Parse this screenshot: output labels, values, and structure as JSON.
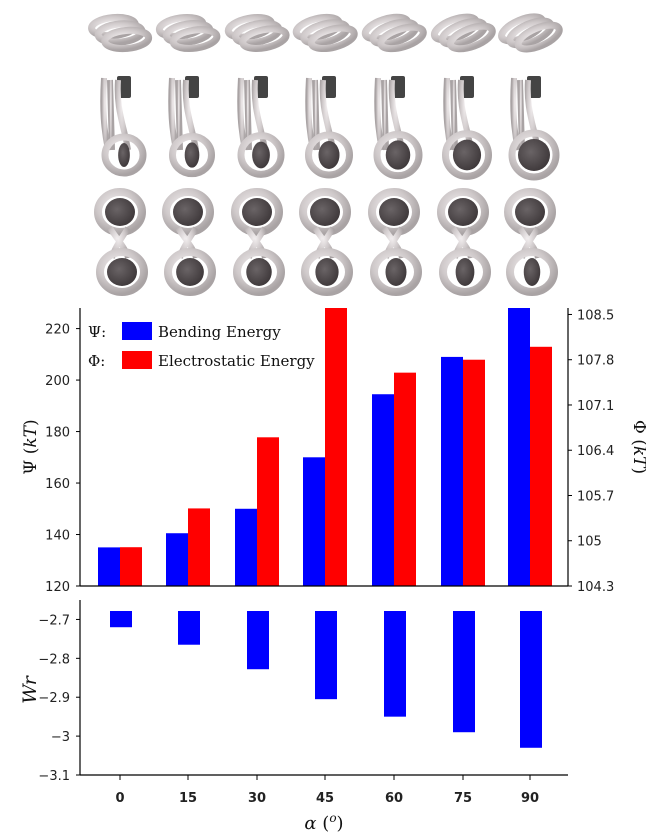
{
  "colors": {
    "bending": "#0000ff",
    "electrostatic": "#ff0000",
    "axis": "#000000",
    "model": "#cfc9ca"
  },
  "model_rows": [
    {
      "label": "top-view-models",
      "icon": "coil-top-view-icon",
      "count": 7
    },
    {
      "label": "side-view-models",
      "icon": "coil-side-view-icon",
      "count": 7
    },
    {
      "label": "front-view-models",
      "icon": "coil-front-view-icon",
      "count": 7
    }
  ],
  "chart_data": [
    {
      "type": "bar",
      "categories": [
        "0",
        "15",
        "30",
        "45",
        "60",
        "75",
        "90"
      ],
      "series": [
        {
          "name": "Bending Energy",
          "axis": "left",
          "values": [
            135,
            140.5,
            150,
            170,
            194.5,
            209,
            228
          ]
        },
        {
          "name": "Electrostatic Energy",
          "axis": "right",
          "values": [
            104.9,
            105.5,
            106.6,
            108.6,
            107.6,
            107.8,
            108.0
          ]
        }
      ],
      "ylabel": "Ψ (kT)",
      "ylim": [
        120,
        228
      ],
      "yticks": [
        "120",
        "140",
        "160",
        "180",
        "200",
        "220"
      ],
      "y2label": "Φ (kT)",
      "y2lim": [
        104.3,
        108.6
      ],
      "y2ticks": [
        "104.3",
        "105",
        "105.7",
        "106.4",
        "107.1",
        "107.8",
        "108.5"
      ],
      "legend": [
        {
          "prefix": "Ψ:",
          "name": "Bending Energy"
        },
        {
          "prefix": "Φ:",
          "name": "Electrostatic Energy"
        }
      ],
      "legend_position": "top-left",
      "grid": false
    },
    {
      "type": "bar",
      "categories": [
        "0",
        "15",
        "30",
        "45",
        "60",
        "75",
        "90"
      ],
      "series": [
        {
          "name": "Wr",
          "values": [
            -2.72,
            -2.765,
            -2.828,
            -2.905,
            -2.95,
            -2.99,
            -3.03
          ]
        }
      ],
      "ylabel": "Wr",
      "ylim": [
        -3.1,
        -2.65
      ],
      "yticks": [
        "-2.7",
        "-2.8",
        "-2.9",
        "-3",
        "-3.1"
      ],
      "xlabel": "α (o)",
      "grid": false
    }
  ]
}
